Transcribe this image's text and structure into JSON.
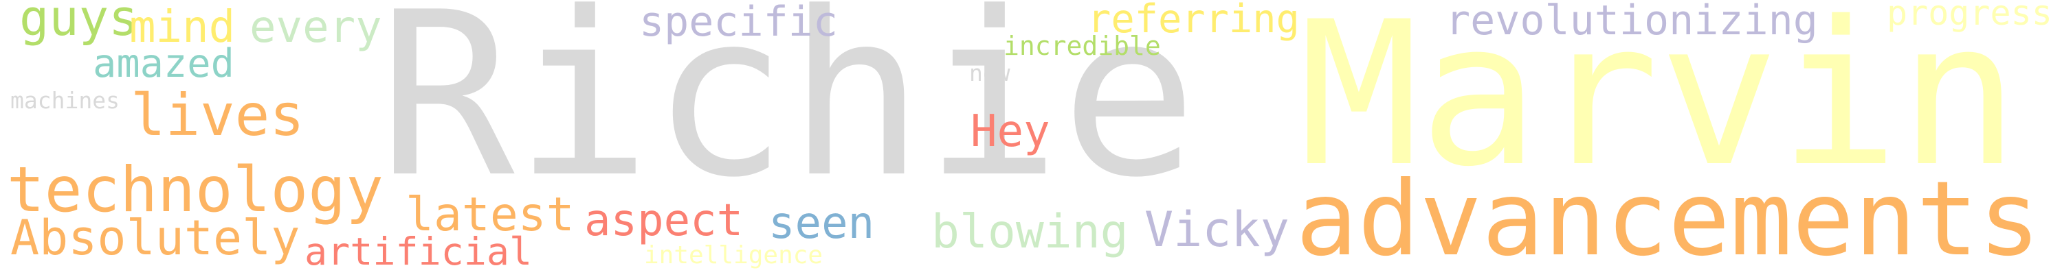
{
  "words": [
    {
      "text": "Richie",
      "color": "#d9d9d9"
    },
    {
      "text": "Marvin",
      "color": "#ffffb3"
    },
    {
      "text": "advancements",
      "color": "#fdb462"
    },
    {
      "text": "technology",
      "color": "#fdb462"
    },
    {
      "text": "lives",
      "color": "#fdb462"
    },
    {
      "text": "Absolutely",
      "color": "#fdb462"
    },
    {
      "text": "guys",
      "color": "#b3de69"
    },
    {
      "text": "mind",
      "color": "#ffed6f"
    },
    {
      "text": "every",
      "color": "#ccebc5"
    },
    {
      "text": "amazed",
      "color": "#8dd3c7"
    },
    {
      "text": "machines",
      "color": "#d9d9d9"
    },
    {
      "text": "specific",
      "color": "#bebada"
    },
    {
      "text": "referring",
      "color": "#ffed6f"
    },
    {
      "text": "revolutionizing",
      "color": "#bebada"
    },
    {
      "text": "progress",
      "color": "#ffffb3"
    },
    {
      "text": "incredible",
      "color": "#b3de69"
    },
    {
      "text": "now",
      "color": "#d9d9d9"
    },
    {
      "text": "Hey",
      "color": "#fb8072"
    },
    {
      "text": "latest",
      "color": "#fdb462"
    },
    {
      "text": "aspect",
      "color": "#fb8072"
    },
    {
      "text": "seen",
      "color": "#80b1d3"
    },
    {
      "text": "blowing",
      "color": "#ccebc5"
    },
    {
      "text": "Vicky",
      "color": "#bebada"
    },
    {
      "text": "artificial",
      "color": "#fb8072"
    },
    {
      "text": "intelligence",
      "color": "#ffffb3"
    }
  ]
}
